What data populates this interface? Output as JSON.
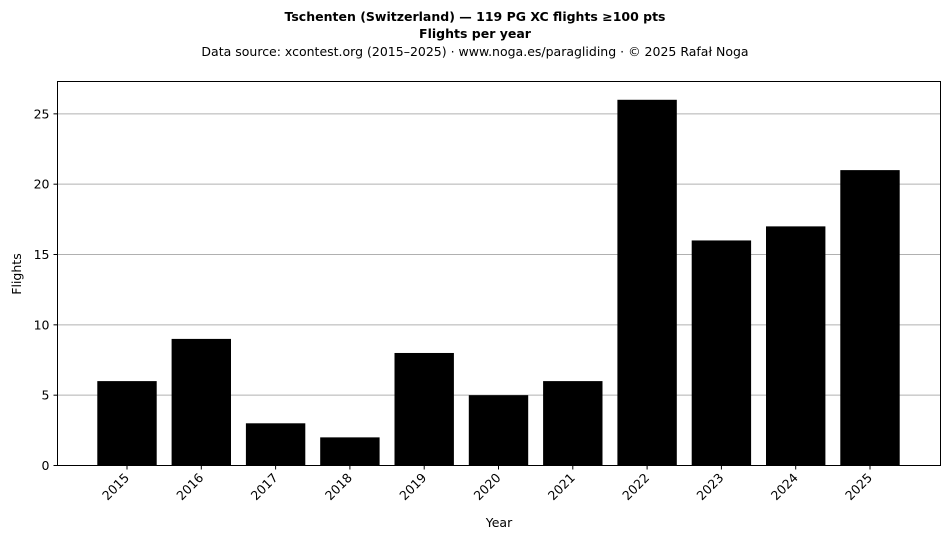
{
  "header": {
    "title_line1": "Tschenten (Switzerland)  —  119 PG XC flights ≥100 pts",
    "title_line2": "Flights per year",
    "subtitle": "Data source: xcontest.org (2015–2025)  ·  www.noga.es/paragliding  ·  © 2025 Rafał Noga"
  },
  "chart_data": {
    "type": "bar",
    "title": "Tschenten (Switzerland)  —  119 PG XC flights ≥100 pts",
    "subtitle": "Flights per year",
    "xlabel": "Year",
    "ylabel": "Flights",
    "categories": [
      "2015",
      "2016",
      "2017",
      "2018",
      "2019",
      "2020",
      "2021",
      "2022",
      "2023",
      "2024",
      "2025"
    ],
    "values": [
      6,
      9,
      3,
      2,
      8,
      5,
      6,
      26,
      16,
      17,
      21
    ],
    "ylim": [
      0,
      27.3
    ],
    "yticks": [
      0,
      5,
      10,
      15,
      20,
      25
    ],
    "grid": "y",
    "bar_color": "#000000",
    "grid_color": "#b0b0b0",
    "xtick_rotation": -45
  }
}
